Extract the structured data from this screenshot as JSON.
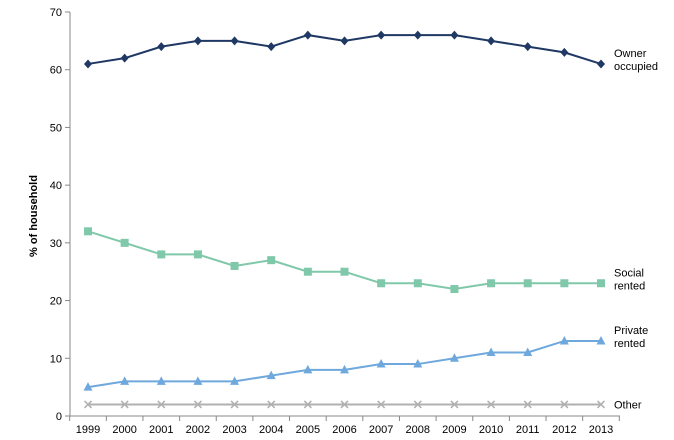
{
  "chart_data": {
    "type": "line",
    "title": "",
    "xlabel": "",
    "ylabel": "% of household",
    "ylim": [
      0,
      70
    ],
    "yticks": [
      0,
      10,
      20,
      30,
      40,
      50,
      60,
      70
    ],
    "grid": false,
    "legend": "none",
    "categories": [
      "1999",
      "2000",
      "2001",
      "2002",
      "2003",
      "2004",
      "2005",
      "2006",
      "2007",
      "2008",
      "2009",
      "2010",
      "2011",
      "2012",
      "2013"
    ],
    "series": [
      {
        "name": "Owner occupied",
        "label_lines": [
          "Owner",
          "occupied"
        ],
        "color": "#1f3864",
        "marker": "diamond",
        "values": [
          61,
          62,
          64,
          65,
          65,
          64,
          66,
          65,
          66,
          66,
          66,
          65,
          64,
          63,
          61
        ]
      },
      {
        "name": "Social rented",
        "label_lines": [
          "Social",
          "rented"
        ],
        "color": "#7fc8a9",
        "marker": "square",
        "values": [
          32,
          30,
          28,
          28,
          26,
          27,
          25,
          25,
          23,
          23,
          22,
          23,
          23,
          23,
          23
        ]
      },
      {
        "name": "Private rented",
        "label_lines": [
          "Private",
          "rented"
        ],
        "color": "#6fa8dc",
        "marker": "triangle",
        "values": [
          5,
          6,
          6,
          6,
          6,
          7,
          8,
          8,
          9,
          9,
          10,
          11,
          11,
          13,
          13
        ]
      },
      {
        "name": "Other",
        "label_lines": [
          "Other"
        ],
        "color": "#b0b0b0",
        "marker": "x",
        "values": [
          2,
          2,
          2,
          2,
          2,
          2,
          2,
          2,
          2,
          2,
          2,
          2,
          2,
          2,
          2
        ]
      }
    ]
  }
}
